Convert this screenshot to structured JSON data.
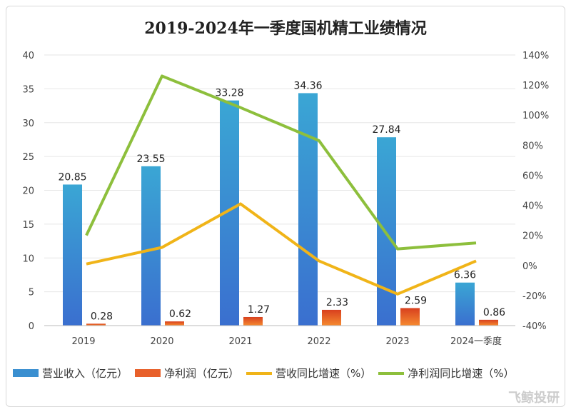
{
  "chart_data": {
    "type": "bar+line",
    "title": "2019-2024年一季度国机精工业绩情况",
    "categories": [
      "2019",
      "2020",
      "2021",
      "2022",
      "2023",
      "2024一季度"
    ],
    "y_left": {
      "ylim": [
        0,
        40
      ],
      "ticks": [
        0,
        5,
        10,
        15,
        20,
        25,
        30,
        35,
        40
      ]
    },
    "y_right": {
      "ylim": [
        -40,
        140
      ],
      "ticks": [
        "-40%",
        "-20%",
        "0%",
        "20%",
        "40%",
        "60%",
        "80%",
        "100%",
        "120%",
        "140%"
      ]
    },
    "grid": true,
    "legend_placement": "bottom",
    "series": [
      {
        "name": "营业收入（亿元）",
        "type": "bar",
        "axis": "left",
        "color": "#3a8fd0",
        "values": [
          20.85,
          23.55,
          33.28,
          34.36,
          27.84,
          6.36
        ],
        "labels": [
          "20.85",
          "23.55",
          "33.28",
          "34.36",
          "27.84",
          "6.36"
        ]
      },
      {
        "name": "净利润（亿元）",
        "type": "bar",
        "axis": "left",
        "color": "#e8602a",
        "values": [
          0.28,
          0.62,
          1.27,
          2.33,
          2.59,
          0.86
        ],
        "labels": [
          "0.28",
          "0.62",
          "1.27",
          "2.33",
          "2.59",
          "0.86"
        ]
      },
      {
        "name": "营收同比增速（%）",
        "type": "line",
        "axis": "right",
        "color": "#f0b418",
        "values": [
          1,
          12,
          41,
          3,
          -19,
          3
        ]
      },
      {
        "name": "净利润同比增速（%）",
        "type": "line",
        "axis": "right",
        "color": "#8dbf3c",
        "values": [
          20,
          126,
          105,
          83,
          11,
          15
        ]
      }
    ]
  },
  "watermark": "飞鲸投研"
}
